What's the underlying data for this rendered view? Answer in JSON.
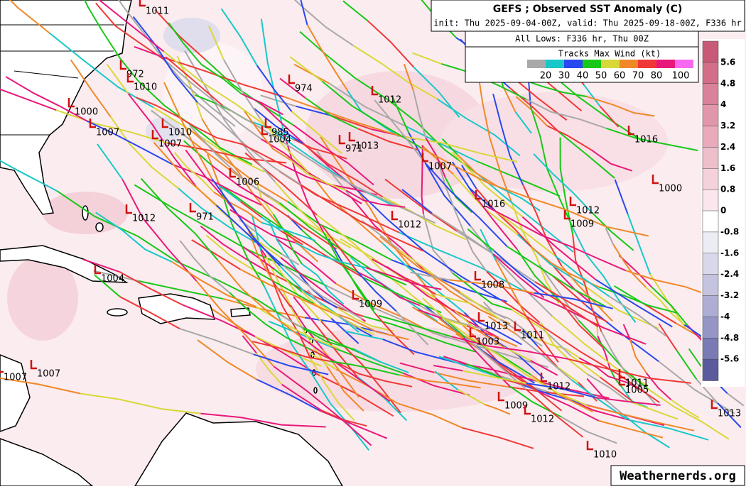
{
  "header": {
    "title": "GEFS ; Observed SST Anomaly (C)",
    "subtitle": "init: Thu 2025-09-04-00Z, valid: Thu 2025-09-18-00Z, F336 hr"
  },
  "legend": {
    "lows_title": "All Lows: F336 hr, Thu 00Z",
    "tracks_title": "Tracks Max Wind (kt)",
    "wind_labels": [
      20,
      30,
      40,
      50,
      60,
      70,
      80,
      100
    ],
    "wind_colors": [
      "#a8a8a8",
      "#18c8c8",
      "#2848f0",
      "#18c818",
      "#d8d838",
      "#f08828",
      "#f03838",
      "#e8187a",
      "#f868f0"
    ]
  },
  "colorbar": {
    "labels": [
      5.6,
      4.8,
      4,
      3.2,
      2.4,
      1.6,
      0.8,
      0,
      -0.8,
      -1.6,
      -2.4,
      -3.2,
      -4,
      -4.8,
      -5.6
    ],
    "colors": [
      "#c85a78",
      "#d26e88",
      "#da8299",
      "#e296aa",
      "#e9aabb",
      "#efbecb",
      "#f5d2db",
      "#fae6ec",
      "#ffffff",
      "#ececf4",
      "#d8d8ea",
      "#c4c4e0",
      "#aeaed4",
      "#9696c6",
      "#7a7ab4",
      "#5a5a9c"
    ]
  },
  "lows": [
    "1011",
    "972",
    "1010",
    "1000",
    "1007",
    "1010",
    "1007",
    "974",
    "1012",
    "985",
    "1004",
    "1016",
    "1007",
    "1013",
    "971",
    "1006",
    "1000",
    "1016",
    "1012",
    "1009",
    "1012",
    "971",
    "1012",
    "1004",
    "1008",
    "1009",
    "1013",
    "1011",
    "1003",
    "1007",
    "1007",
    "1012",
    "1011",
    "1005",
    "1009",
    "1012",
    "1013",
    "1010"
  ],
  "watermark": "Weathernerds.org"
}
